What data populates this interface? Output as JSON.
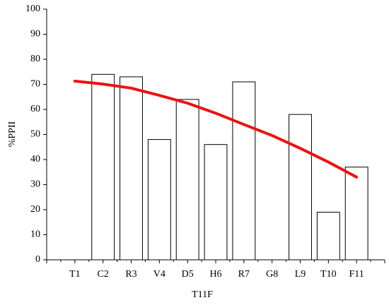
{
  "chart_data": {
    "type": "bar",
    "x_label": "T11F",
    "y_label": "%PPII",
    "categories": [
      "T1",
      "C2",
      "R3",
      "V4",
      "D5",
      "H6",
      "R7",
      "G8",
      "L9",
      "T10",
      "F11"
    ],
    "values": [
      0,
      74,
      73,
      48,
      64,
      46,
      71,
      0,
      58,
      19,
      37
    ],
    "color": "#ffffff",
    "line": {
      "color": "#ee1111",
      "values": [
        71.3,
        70.1,
        68.5,
        65.6,
        62.5,
        58.5,
        54,
        49.6,
        44.5,
        39,
        33
      ]
    },
    "ylim": [
      0,
      100
    ],
    "yticks": [
      0,
      10,
      20,
      30,
      40,
      50,
      60,
      70,
      80,
      90,
      100
    ]
  }
}
